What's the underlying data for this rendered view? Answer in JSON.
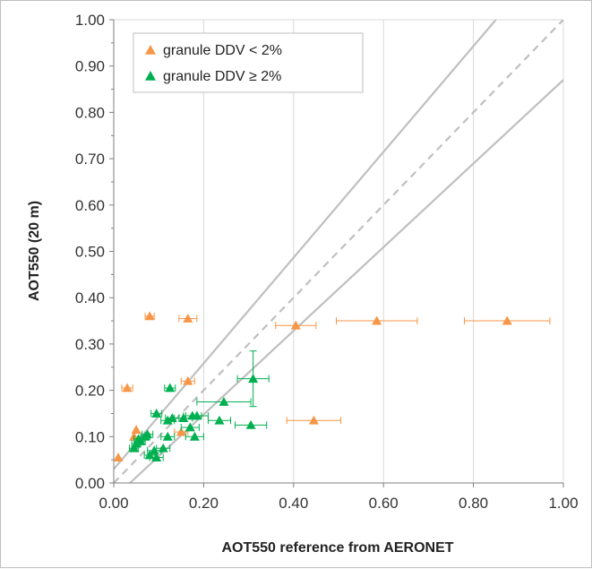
{
  "chart_data": {
    "type": "scatter",
    "xlabel": "AOT550 reference from AERONET",
    "ylabel": "AOT550  (20 m)",
    "xlim": [
      0,
      1
    ],
    "ylim": [
      0,
      1
    ],
    "x_ticks": [
      "0.00",
      "0.20",
      "0.40",
      "0.60",
      "0.80",
      "1.00"
    ],
    "y_ticks": [
      "0.00",
      "0.10",
      "0.20",
      "0.30",
      "0.40",
      "0.50",
      "0.60",
      "0.70",
      "0.80",
      "0.90",
      "1.00"
    ],
    "grid": "vertical",
    "legend_position": "top-left",
    "reference_lines": [
      {
        "style": "dashed",
        "slope": 1.0,
        "intercept": 0.0
      },
      {
        "style": "solid",
        "slope": 0.9,
        "intercept": 0.05
      },
      {
        "style": "solid",
        "slope": 1.0,
        "intercept": 0.0,
        "description": "upper bound"
      }
    ],
    "series": [
      {
        "name": "granule DDV < 2%",
        "color": "#f79646",
        "marker": "triangle",
        "points": [
          {
            "x": 0.01,
            "y": 0.055,
            "xerr": 0.0
          },
          {
            "x": 0.03,
            "y": 0.205,
            "xerr": 0.012
          },
          {
            "x": 0.045,
            "y": 0.1,
            "xerr": 0.0
          },
          {
            "x": 0.05,
            "y": 0.115,
            "xerr": 0.0
          },
          {
            "x": 0.08,
            "y": 0.36,
            "xerr": 0.01
          },
          {
            "x": 0.165,
            "y": 0.355,
            "xerr": 0.02
          },
          {
            "x": 0.165,
            "y": 0.22,
            "xerr": 0.015
          },
          {
            "x": 0.15,
            "y": 0.11,
            "xerr": 0.015
          },
          {
            "x": 0.405,
            "y": 0.34,
            "xerr": 0.045
          },
          {
            "x": 0.585,
            "y": 0.35,
            "xerr": 0.09
          },
          {
            "x": 0.875,
            "y": 0.35,
            "xerr": 0.095
          },
          {
            "x": 0.445,
            "y": 0.135,
            "xerr": 0.06
          }
        ]
      },
      {
        "name": "granule DDV ≥ 2%",
        "color": "#00b050",
        "marker": "triangle",
        "points": [
          {
            "x": 0.045,
            "y": 0.075,
            "xerr": 0.01
          },
          {
            "x": 0.05,
            "y": 0.085,
            "xerr": 0.01
          },
          {
            "x": 0.055,
            "y": 0.095,
            "xerr": 0.01
          },
          {
            "x": 0.06,
            "y": 0.09,
            "xerr": 0.01
          },
          {
            "x": 0.07,
            "y": 0.1,
            "xerr": 0.01
          },
          {
            "x": 0.075,
            "y": 0.105,
            "xerr": 0.012
          },
          {
            "x": 0.08,
            "y": 0.06,
            "xerr": 0.012
          },
          {
            "x": 0.09,
            "y": 0.07,
            "xerr": 0.015
          },
          {
            "x": 0.095,
            "y": 0.055,
            "xerr": 0.015
          },
          {
            "x": 0.095,
            "y": 0.15,
            "xerr": 0.012
          },
          {
            "x": 0.11,
            "y": 0.075,
            "xerr": 0.015
          },
          {
            "x": 0.12,
            "y": 0.1,
            "xerr": 0.015
          },
          {
            "x": 0.12,
            "y": 0.135,
            "xerr": 0.015
          },
          {
            "x": 0.125,
            "y": 0.205,
            "xerr": 0.012
          },
          {
            "x": 0.13,
            "y": 0.14,
            "xerr": 0.015
          },
          {
            "x": 0.155,
            "y": 0.14,
            "xerr": 0.02
          },
          {
            "x": 0.17,
            "y": 0.12,
            "xerr": 0.02
          },
          {
            "x": 0.175,
            "y": 0.145,
            "xerr": 0.02
          },
          {
            "x": 0.18,
            "y": 0.1,
            "xerr": 0.02
          },
          {
            "x": 0.185,
            "y": 0.145,
            "xerr": 0.025
          },
          {
            "x": 0.235,
            "y": 0.135,
            "xerr": 0.025
          },
          {
            "x": 0.245,
            "y": 0.175,
            "xerr": 0.06
          },
          {
            "x": 0.305,
            "y": 0.125,
            "xerr": 0.035
          },
          {
            "x": 0.31,
            "y": 0.225,
            "xerr": 0.035,
            "yerr": 0.06
          }
        ]
      }
    ]
  }
}
